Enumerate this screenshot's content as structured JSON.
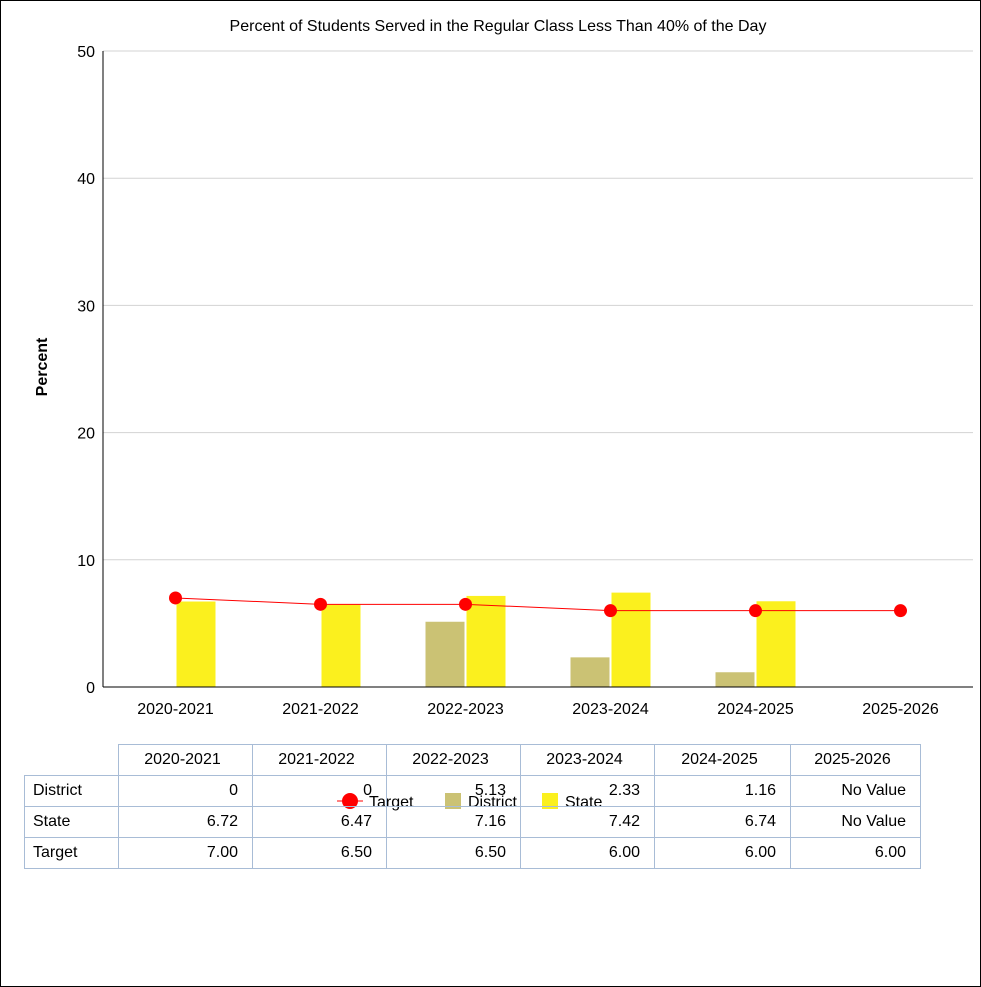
{
  "chart_data": {
    "type": "bar",
    "title": "Percent of Students Served in the Regular Class Less Than 40% of the Day",
    "xlabel": "",
    "ylabel": "Percent",
    "ylim": [
      0,
      50
    ],
    "yticks": [
      0,
      10,
      20,
      30,
      40,
      50
    ],
    "grid": true,
    "legend_placement": "bottom",
    "categories": [
      "2020-2021",
      "2021-2022",
      "2022-2023",
      "2023-2024",
      "2024-2025",
      "2025-2026"
    ],
    "series": [
      {
        "name": "Target",
        "kind": "line",
        "color": "#ff0000",
        "values": [
          7.0,
          6.5,
          6.5,
          6.0,
          6.0,
          6.0
        ]
      },
      {
        "name": "District",
        "kind": "bar",
        "color": "#cbc274",
        "values": [
          0,
          0,
          5.13,
          2.33,
          1.16,
          null
        ]
      },
      {
        "name": "State",
        "kind": "bar",
        "color": "#fbf01e",
        "values": [
          6.72,
          6.47,
          7.16,
          7.42,
          6.74,
          null
        ]
      }
    ]
  },
  "table": {
    "columns": [
      "2020-2021",
      "2021-2022",
      "2022-2023",
      "2023-2024",
      "2024-2025",
      "2025-2026"
    ],
    "rows": [
      {
        "label": "District",
        "cells": [
          "0",
          "0",
          "5.13",
          "2.33",
          "1.16",
          "No Value"
        ]
      },
      {
        "label": "State",
        "cells": [
          "6.72",
          "6.47",
          "7.16",
          "7.42",
          "6.74",
          "No Value"
        ]
      },
      {
        "label": "Target",
        "cells": [
          "7.00",
          "6.50",
          "6.50",
          "6.00",
          "6.00",
          "6.00"
        ]
      }
    ]
  }
}
